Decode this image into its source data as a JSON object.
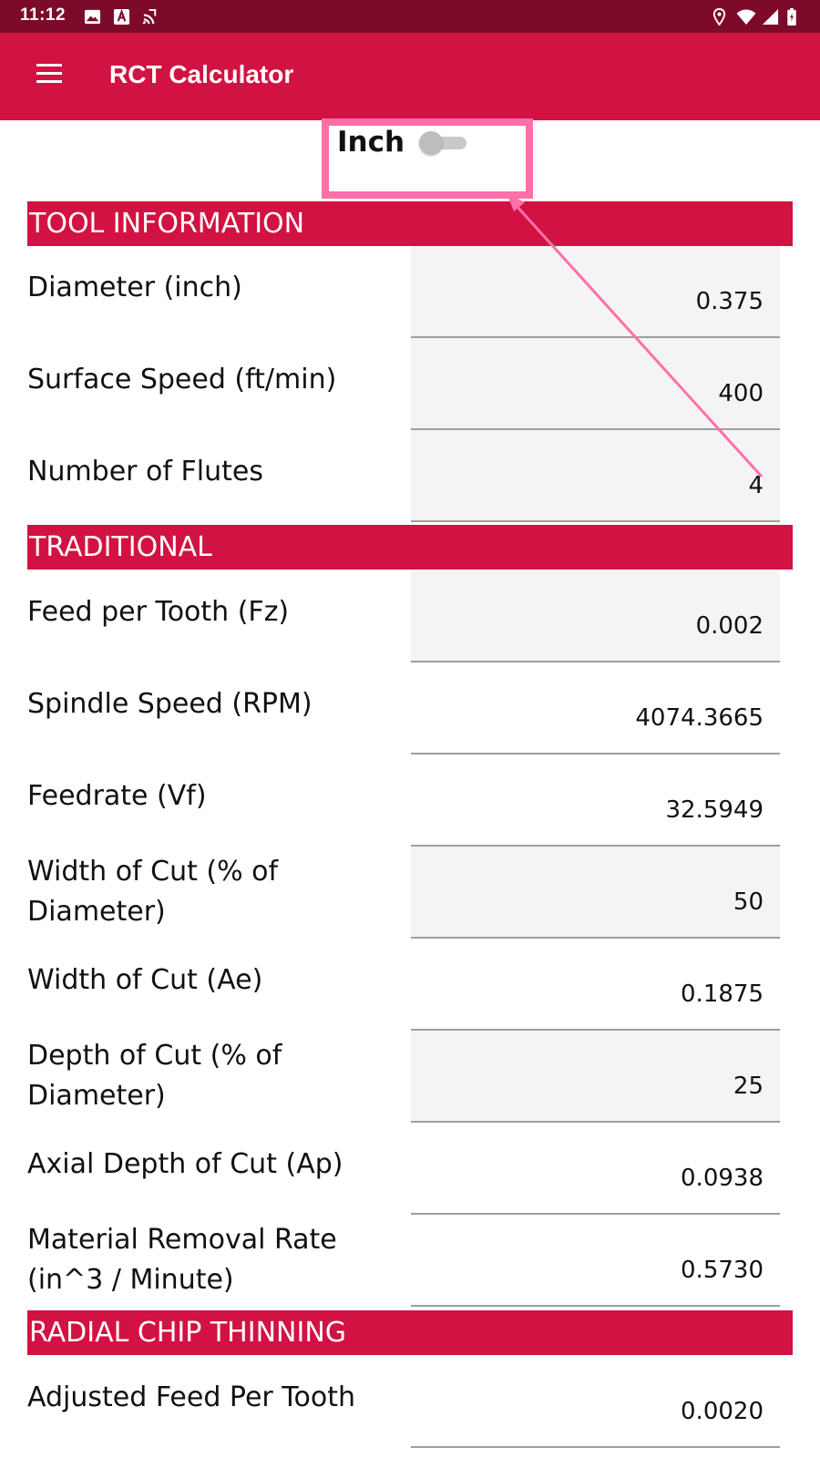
{
  "status_bar": {
    "time": "11:12",
    "left_icons": [
      "image-icon",
      "text-a-icon",
      "cast-icon"
    ],
    "right_icons": [
      "location-icon",
      "wifi-icon",
      "signal-icon",
      "battery-icon"
    ]
  },
  "app_bar": {
    "title": "RCT Calculator",
    "menu_icon": "hamburger-menu-icon"
  },
  "unit_toggle": {
    "label": "Inch",
    "checked": false
  },
  "annotation": {
    "color": "#ff6fa9"
  },
  "colors": {
    "status_bar": "#7d0a29",
    "app_bar": "#d21242",
    "section_header": "#d21242",
    "field_background": "#f4f4f4"
  },
  "tool_information": {
    "header": "TOOL INFORMATION",
    "rows": [
      {
        "label": "Diameter (inch)",
        "value": "0.375",
        "editable": true
      },
      {
        "label": "Surface Speed (ft/min)",
        "value": "400",
        "editable": true
      },
      {
        "label": "Number of Flutes",
        "value": "4",
        "editable": true
      }
    ]
  },
  "traditional": {
    "header": "TRADITIONAL",
    "rows": [
      {
        "label": "Feed per Tooth (Fz)",
        "value": "0.002",
        "editable": true
      },
      {
        "label": "Spindle Speed (RPM)",
        "value": "4074.3665",
        "editable": false
      },
      {
        "label": "Feedrate (Vf)",
        "value": "32.5949",
        "editable": false
      },
      {
        "label": "Width of Cut (% of Diameter)",
        "value": "50",
        "editable": true
      },
      {
        "label": "Width of Cut (Ae)",
        "value": "0.1875",
        "editable": false
      },
      {
        "label": "Depth of Cut (% of Diameter)",
        "value": "25",
        "editable": true
      },
      {
        "label": "Axial Depth of Cut (Ap)",
        "value": "0.0938",
        "editable": false
      },
      {
        "label": "Material Removal Rate (in^3 / Minute)",
        "value": "0.5730",
        "editable": false
      }
    ]
  },
  "radial_chip_thinning": {
    "header": "RADIAL CHIP THINNING",
    "rows": [
      {
        "label": "Adjusted Feed Per Tooth",
        "value": "0.0020",
        "editable": false
      }
    ]
  }
}
